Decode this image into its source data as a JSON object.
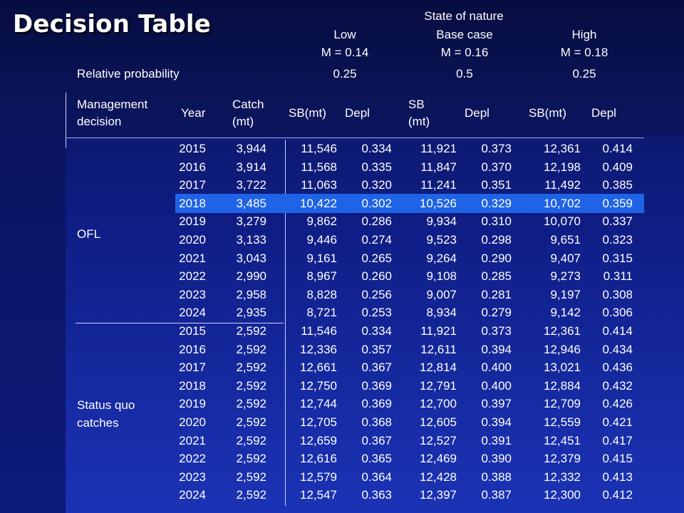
{
  "title": "Decision Table",
  "header": {
    "state_of_nature": "State of nature",
    "scenarios": [
      {
        "name": "Low",
        "m": "M = 0.14",
        "probability": "0.25"
      },
      {
        "name": "Base case",
        "m": "M = 0.16",
        "probability": "0.5"
      },
      {
        "name": "High",
        "m": "M = 0.18",
        "probability": "0.25"
      }
    ],
    "relative_probability_label": "Relative probability",
    "columns": {
      "management_decision": [
        "Management",
        "decision"
      ],
      "year": "Year",
      "catch": [
        "Catch",
        "(mt)"
      ],
      "sb_low": "SB(mt)",
      "depl_low": "Depl",
      "sb_base": [
        "SB",
        "(mt)"
      ],
      "depl_base": "Depl",
      "sb_high": "SB(mt)",
      "depl_high": "Depl"
    }
  },
  "groups": [
    {
      "label": [
        "OFL"
      ],
      "highlight_year": "2018",
      "rows": [
        [
          "2015",
          "3,944",
          "11,546",
          "0.334",
          "11,921",
          "0.373",
          "12,361",
          "0.414"
        ],
        [
          "2016",
          "3,914",
          "11,568",
          "0.335",
          "11,847",
          "0.370",
          "12,198",
          "0.409"
        ],
        [
          "2017",
          "3,722",
          "11,063",
          "0.320",
          "11,241",
          "0.351",
          "11,492",
          "0.385"
        ],
        [
          "2018",
          "3,485",
          "10,422",
          "0.302",
          "10,526",
          "0.329",
          "10,702",
          "0.359"
        ],
        [
          "2019",
          "3,279",
          "9,862",
          "0.286",
          "9,934",
          "0.310",
          "10,070",
          "0.337"
        ],
        [
          "2020",
          "3,133",
          "9,446",
          "0.274",
          "9,523",
          "0.298",
          "9,651",
          "0.323"
        ],
        [
          "2021",
          "3,043",
          "9,161",
          "0.265",
          "9,264",
          "0.290",
          "9,407",
          "0.315"
        ],
        [
          "2022",
          "2,990",
          "8,967",
          "0.260",
          "9,108",
          "0.285",
          "9,273",
          "0.311"
        ],
        [
          "2023",
          "2,958",
          "8,828",
          "0.256",
          "9,007",
          "0.281",
          "9,197",
          "0.308"
        ],
        [
          "2024",
          "2,935",
          "8,721",
          "0.253",
          "8,934",
          "0.279",
          "9,142",
          "0.306"
        ]
      ]
    },
    {
      "label": [
        "Status quo",
        "catches"
      ],
      "highlight_year": "",
      "rows": [
        [
          "2015",
          "2,592",
          "11,546",
          "0.334",
          "11,921",
          "0.373",
          "12,361",
          "0.414"
        ],
        [
          "2016",
          "2,592",
          "12,336",
          "0.357",
          "12,611",
          "0.394",
          "12,946",
          "0.434"
        ],
        [
          "2017",
          "2,592",
          "12,661",
          "0.367",
          "12,814",
          "0.400",
          "13,021",
          "0.436"
        ],
        [
          "2018",
          "2,592",
          "12,750",
          "0.369",
          "12,791",
          "0.400",
          "12,884",
          "0.432"
        ],
        [
          "2019",
          "2,592",
          "12,744",
          "0.369",
          "12,700",
          "0.397",
          "12,709",
          "0.426"
        ],
        [
          "2020",
          "2,592",
          "12,705",
          "0.368",
          "12,605",
          "0.394",
          "12,559",
          "0.421"
        ],
        [
          "2021",
          "2,592",
          "12,659",
          "0.367",
          "12,527",
          "0.391",
          "12,451",
          "0.417"
        ],
        [
          "2022",
          "2,592",
          "12,616",
          "0.365",
          "12,469",
          "0.390",
          "12,379",
          "0.415"
        ],
        [
          "2023",
          "2,592",
          "12,579",
          "0.364",
          "12,428",
          "0.388",
          "12,332",
          "0.413"
        ],
        [
          "2024",
          "2,592",
          "12,547",
          "0.363",
          "12,397",
          "0.387",
          "12,300",
          "0.412"
        ]
      ]
    }
  ]
}
